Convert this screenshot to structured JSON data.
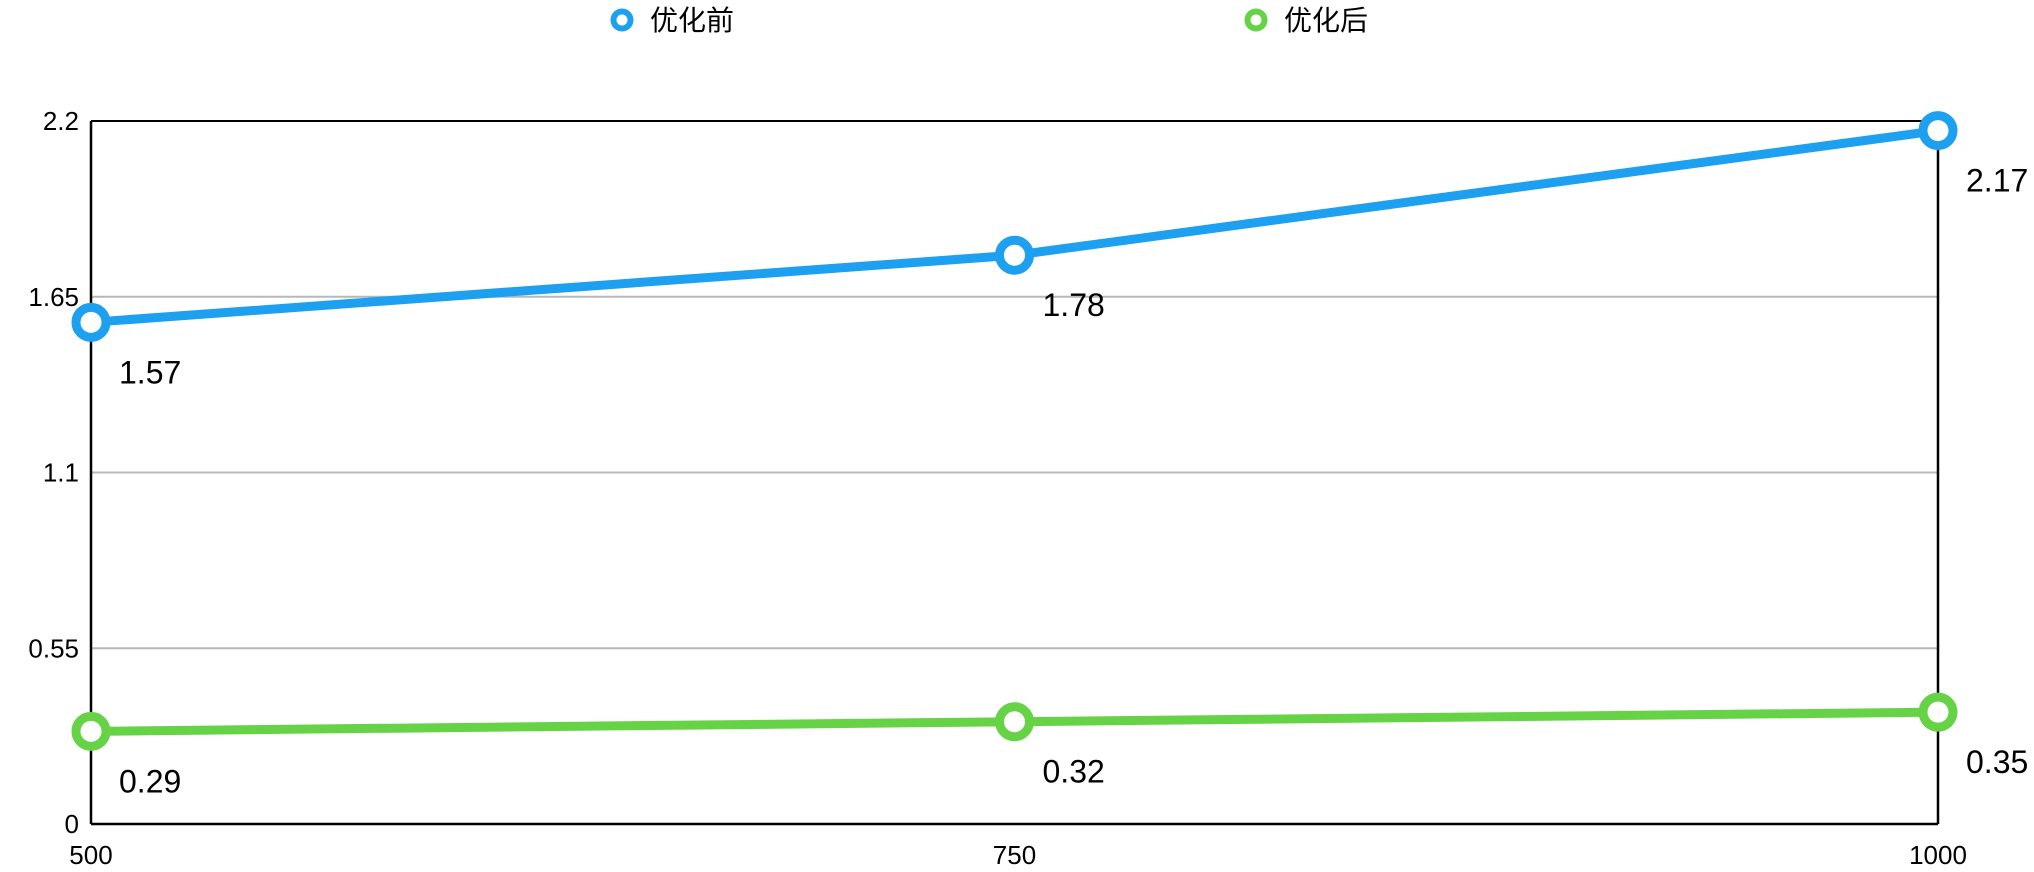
{
  "chart_data": {
    "type": "line",
    "x": [
      "500",
      "750",
      "1000"
    ],
    "series": [
      {
        "name": "优化前",
        "values": [
          1.57,
          1.78,
          2.17
        ],
        "color": "#1EA0F0"
      },
      {
        "name": "优化后",
        "values": [
          0.29,
          0.32,
          0.35
        ],
        "color": "#66D245"
      }
    ],
    "y_ticks": [
      "0",
      "0.55",
      "1.1",
      "1.65",
      "2.2"
    ],
    "ylim": [
      0,
      2.2
    ],
    "grid": true,
    "legend": "top-center"
  }
}
